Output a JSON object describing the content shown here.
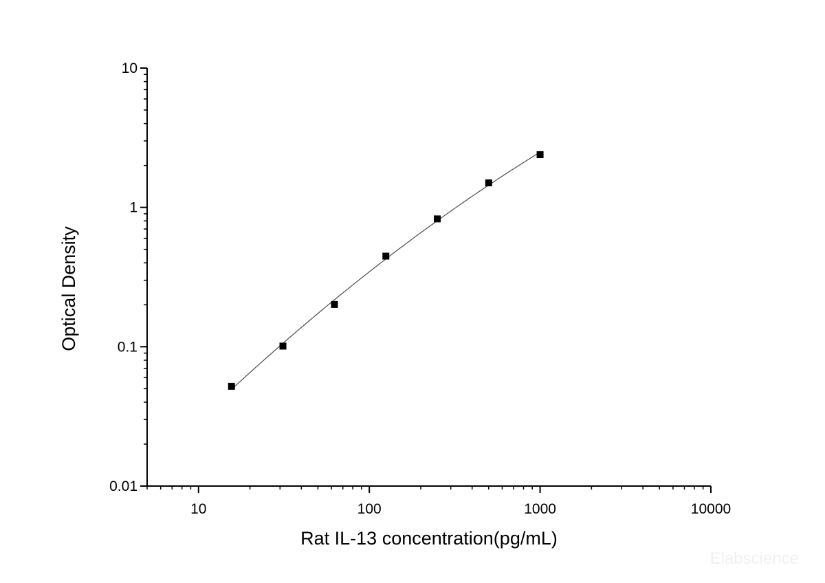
{
  "chart_data": {
    "type": "scatter",
    "title": "",
    "xlabel": "Rat IL-13 concentration(pg/mL)",
    "ylabel": "Optical Density",
    "x_scale": "log",
    "y_scale": "log",
    "xlim": [
      5,
      10000
    ],
    "ylim": [
      0.01,
      10
    ],
    "x_ticks": [
      {
        "value": 10,
        "label": "10"
      },
      {
        "value": 100,
        "label": "100"
      },
      {
        "value": 1000,
        "label": "1000"
      },
      {
        "value": 10000,
        "label": "10000"
      }
    ],
    "y_ticks": [
      {
        "value": 0.01,
        "label": "0.01"
      },
      {
        "value": 0.1,
        "label": "0.1"
      },
      {
        "value": 1,
        "label": "1"
      },
      {
        "value": 10,
        "label": "10"
      }
    ],
    "grid": false,
    "legend": "none",
    "marker": "square",
    "series": [
      {
        "x": [
          15.6,
          31.2,
          62.5,
          125,
          250,
          500,
          1000
        ],
        "y": [
          0.052,
          0.101,
          0.201,
          0.447,
          0.827,
          1.5,
          2.39
        ],
        "fit_curve": true
      }
    ],
    "colors": {
      "marker": "#000000",
      "curve": "#4a4a4a",
      "axis": "#000000"
    }
  },
  "watermark": "Elabscience"
}
